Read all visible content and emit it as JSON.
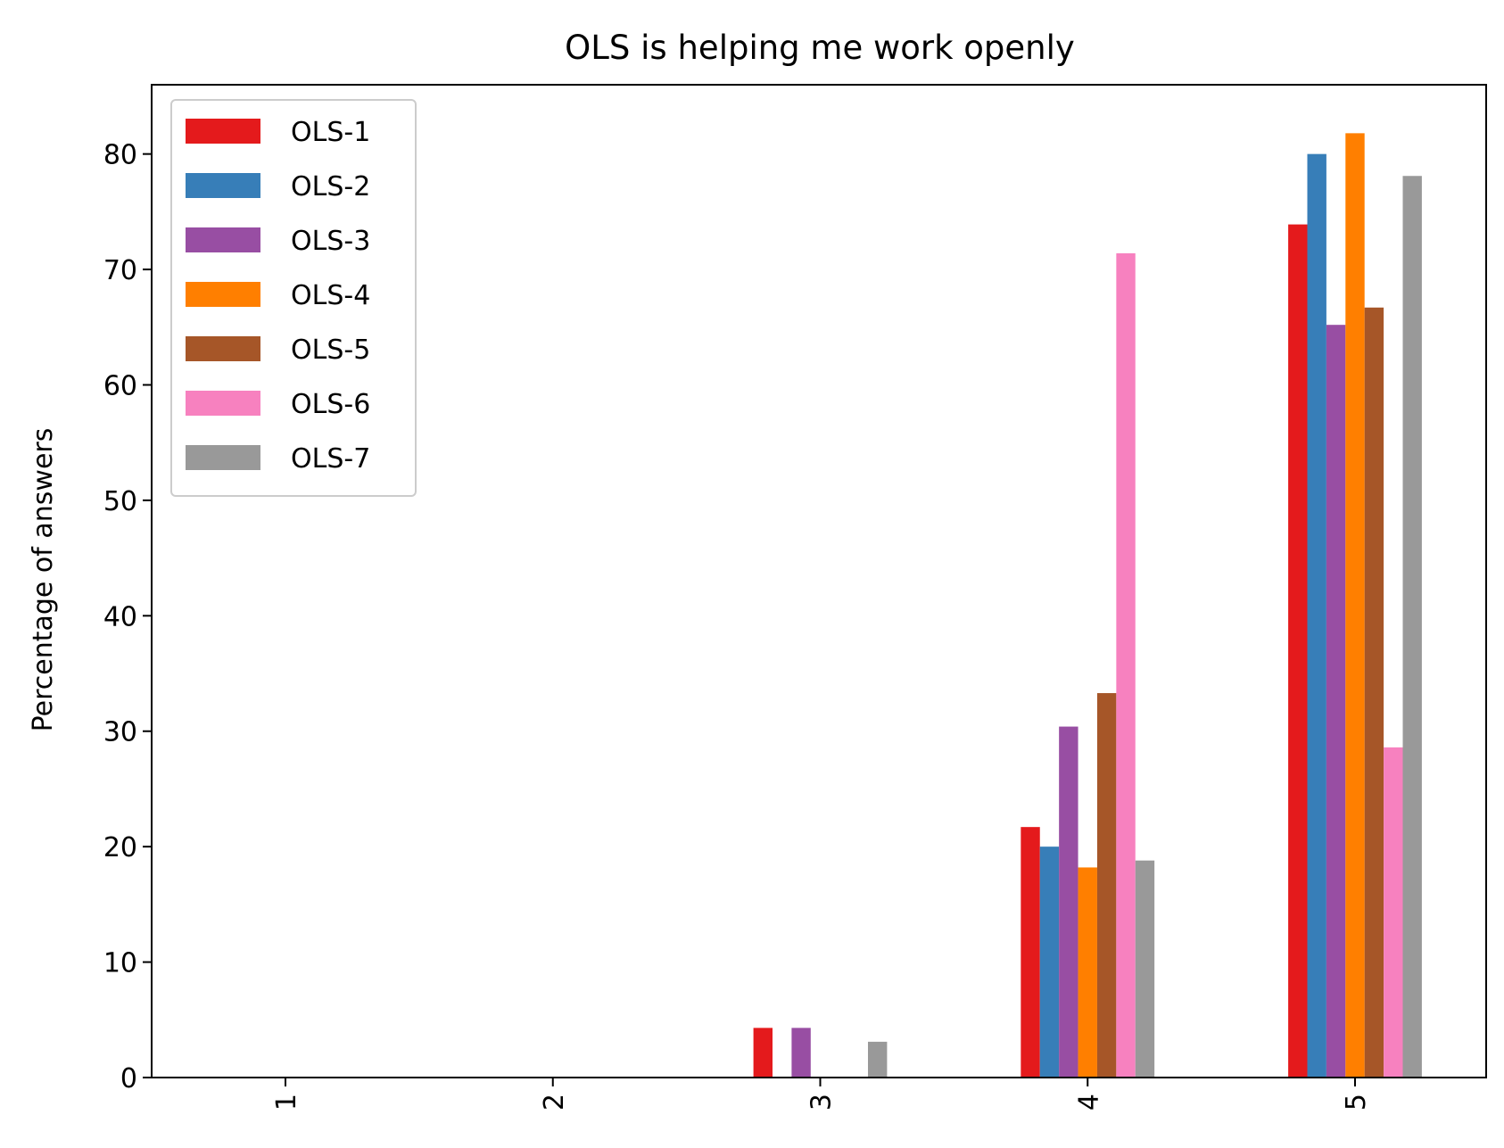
{
  "chart_data": {
    "type": "bar",
    "title": "OLS is helping me work openly",
    "xlabel": "",
    "ylabel": "Percentage of answers",
    "categories": [
      "1",
      "2",
      "3",
      "4",
      "5"
    ],
    "ylim": [
      0,
      86
    ],
    "yticks": [
      0,
      10,
      20,
      30,
      40,
      50,
      60,
      70,
      80
    ],
    "grid": false,
    "legend_position": "top-left",
    "series": [
      {
        "name": "OLS-1",
        "color": "#e41a1c",
        "values": [
          0,
          0,
          4.3,
          21.7,
          73.9
        ]
      },
      {
        "name": "OLS-2",
        "color": "#377eb8",
        "values": [
          0,
          0,
          0,
          20.0,
          80.0
        ]
      },
      {
        "name": "OLS-3",
        "color": "#984ea3",
        "values": [
          0,
          0,
          4.3,
          30.4,
          65.2
        ]
      },
      {
        "name": "OLS-4",
        "color": "#ff7f00",
        "values": [
          0,
          0,
          0,
          18.2,
          81.8
        ]
      },
      {
        "name": "OLS-5",
        "color": "#a65628",
        "values": [
          0,
          0,
          0,
          33.3,
          66.7
        ]
      },
      {
        "name": "OLS-6",
        "color": "#f781bf",
        "values": [
          0,
          0,
          0,
          71.4,
          28.6
        ]
      },
      {
        "name": "OLS-7",
        "color": "#999999",
        "values": [
          0,
          0,
          3.1,
          18.8,
          78.1
        ]
      }
    ]
  }
}
